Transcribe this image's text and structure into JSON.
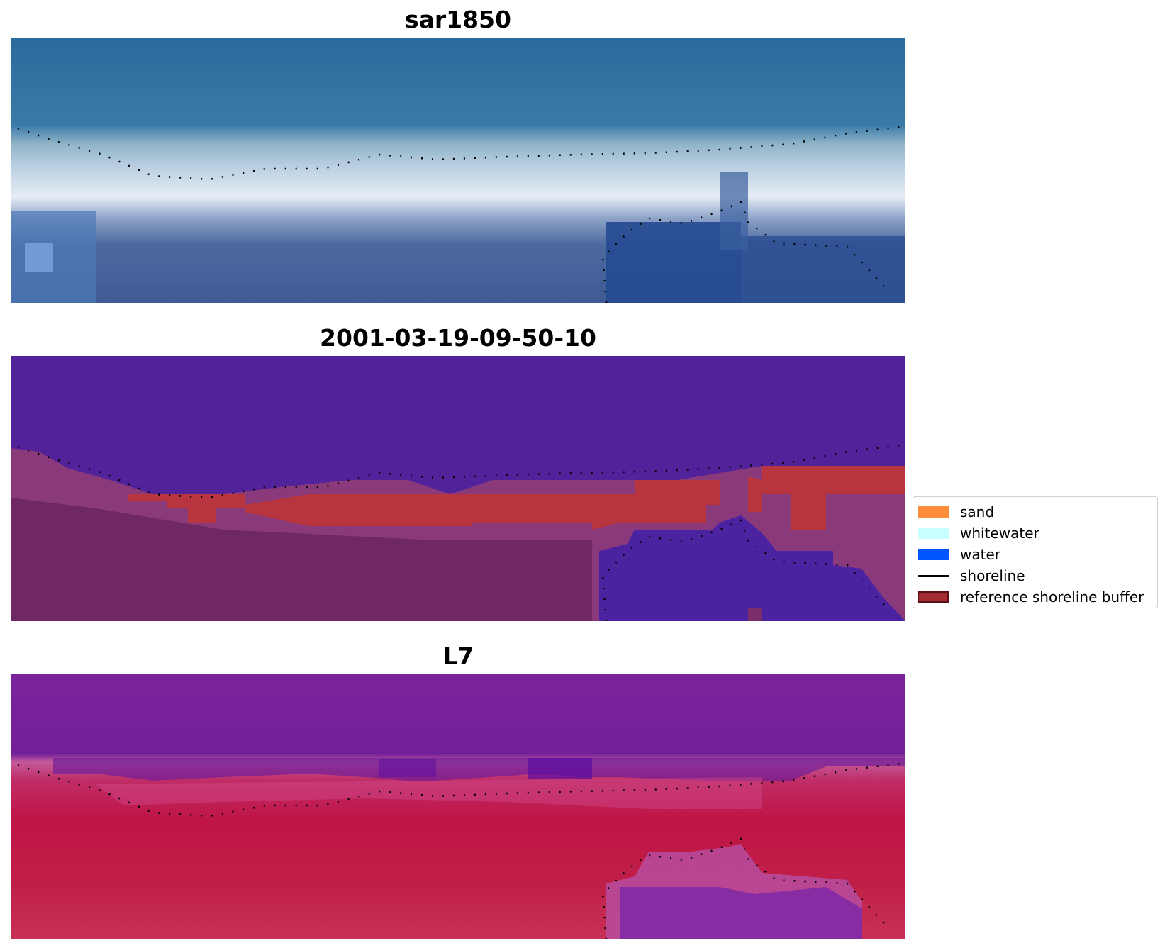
{
  "panels": [
    {
      "title": "sar1850",
      "style": "rgb",
      "base_color": "#2f6a9c"
    },
    {
      "title": "2001-03-19-09-50-10",
      "style": "classified",
      "base_color": "#51239a"
    },
    {
      "title": "L7",
      "style": "false-color",
      "base_color": "#74209a"
    }
  ],
  "legend": {
    "items": [
      {
        "label": "sand",
        "kind": "patch",
        "color": "#ff8c3a"
      },
      {
        "label": "whitewater",
        "kind": "patch",
        "color": "#c8ffff"
      },
      {
        "label": "water",
        "kind": "patch",
        "color": "#0055ff"
      },
      {
        "label": "shoreline",
        "kind": "line",
        "color": "#000000"
      },
      {
        "label": "reference shoreline buffer",
        "kind": "patch",
        "color": "#a32c33",
        "edge": "#5a1016"
      }
    ]
  },
  "colors": {
    "buffer": "#b8343f",
    "water_class": "#4b23a0",
    "land_class": "#7a2d6a",
    "whitewater_band": "#c8d6ea",
    "l7_water": "#74209a",
    "l7_land": "#c0183c"
  }
}
